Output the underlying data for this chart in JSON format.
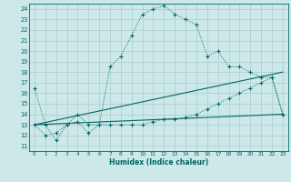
{
  "xlabel": "Humidex (Indice chaleur)",
  "bg_color": "#cce8e8",
  "grid_color": "#aacccc",
  "line_color": "#006666",
  "xlim": [
    -0.5,
    23.5
  ],
  "ylim": [
    10.5,
    24.5
  ],
  "xticks": [
    0,
    1,
    2,
    3,
    4,
    5,
    6,
    7,
    8,
    9,
    10,
    11,
    12,
    13,
    14,
    15,
    16,
    17,
    18,
    19,
    20,
    21,
    22,
    23
  ],
  "yticks": [
    11,
    12,
    13,
    14,
    15,
    16,
    17,
    18,
    19,
    20,
    21,
    22,
    23,
    24
  ],
  "series1_x": [
    0,
    1,
    2,
    3,
    4,
    5,
    6,
    7,
    8,
    9,
    10,
    11,
    12,
    13,
    14,
    15,
    16,
    17,
    18,
    19,
    20,
    21,
    22,
    23
  ],
  "series1_y": [
    16.5,
    13.0,
    11.5,
    13.0,
    14.0,
    13.0,
    13.0,
    18.5,
    19.5,
    21.5,
    23.5,
    24.0,
    24.3,
    23.5,
    23.0,
    22.5,
    19.5,
    20.0,
    18.5,
    18.5,
    18.0,
    17.5,
    17.5,
    14.0
  ],
  "series2_x": [
    0,
    1,
    2,
    3,
    4,
    5,
    6,
    7,
    8,
    9,
    10,
    11,
    12,
    13,
    14,
    15,
    16,
    17,
    18,
    19,
    20,
    21,
    22,
    23
  ],
  "series2_y": [
    13.0,
    12.0,
    12.2,
    13.0,
    13.3,
    12.2,
    13.0,
    13.0,
    13.0,
    13.0,
    13.0,
    13.3,
    13.5,
    13.5,
    13.7,
    14.0,
    14.5,
    15.0,
    15.5,
    16.0,
    16.5,
    17.0,
    17.5,
    14.0
  ],
  "series3_x": [
    0,
    23
  ],
  "series3_y": [
    13.0,
    14.0
  ],
  "series4_x": [
    0,
    23
  ],
  "series4_y": [
    13.0,
    18.0
  ]
}
